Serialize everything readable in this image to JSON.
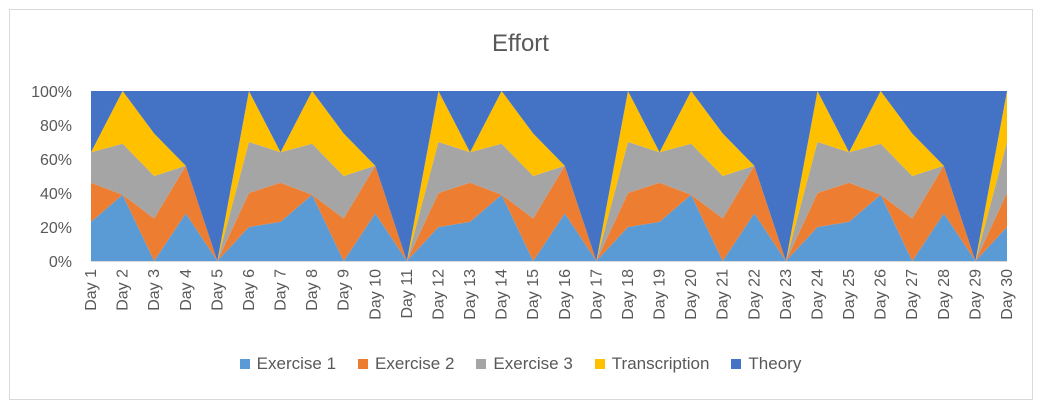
{
  "chart_data": {
    "type": "area",
    "stacked_percent": true,
    "title": "Effort",
    "categories": [
      "Day 1",
      "Day 2",
      "Day 3",
      "Day 4",
      "Day 5",
      "Day 6",
      "Day 7",
      "Day 8",
      "Day 9",
      "Day 10",
      "Day 11",
      "Day 12",
      "Day 13",
      "Day 14",
      "Day 15",
      "Day 16",
      "Day 17",
      "Day 18",
      "Day 19",
      "Day 20",
      "Day 21",
      "Day 22",
      "Day 23",
      "Day 24",
      "Day 25",
      "Day 26",
      "Day 27",
      "Day 28",
      "Day 29",
      "Day 30"
    ],
    "y_ticks": [
      "0%",
      "20%",
      "40%",
      "60%",
      "80%",
      "100%"
    ],
    "ylim": [
      0,
      100
    ],
    "legend_position": "bottom",
    "grid": false,
    "series": [
      {
        "name": "Exercise 1",
        "color": "#5B9BD5",
        "values": [
          23,
          39,
          0,
          28,
          0,
          20,
          23,
          39,
          0,
          28,
          0,
          20,
          23,
          39,
          0,
          28,
          0,
          20,
          23,
          39,
          0,
          28,
          0,
          20,
          23,
          39,
          0,
          28,
          0,
          20
        ]
      },
      {
        "name": "Exercise 2",
        "color": "#ED7D31",
        "values": [
          23,
          0,
          25,
          28,
          0,
          20,
          23,
          0,
          25,
          28,
          0,
          20,
          23,
          0,
          25,
          28,
          0,
          20,
          23,
          0,
          25,
          28,
          0,
          20,
          23,
          0,
          25,
          28,
          0,
          20
        ]
      },
      {
        "name": "Exercise 3",
        "color": "#A5A5A5",
        "values": [
          18,
          30,
          25,
          0,
          0,
          30,
          18,
          30,
          25,
          0,
          0,
          30,
          18,
          30,
          25,
          0,
          0,
          30,
          18,
          30,
          25,
          0,
          0,
          30,
          18,
          30,
          25,
          0,
          0,
          30
        ]
      },
      {
        "name": "Transcription",
        "color": "#FFC000",
        "values": [
          0,
          31,
          25,
          0,
          0,
          30,
          0,
          31,
          25,
          0,
          0,
          30,
          0,
          31,
          25,
          0,
          0,
          30,
          0,
          31,
          25,
          0,
          0,
          30,
          0,
          31,
          25,
          0,
          0,
          30
        ]
      },
      {
        "name": "Theory",
        "color": "#4472C4",
        "values": [
          36,
          0,
          25,
          44,
          100,
          0,
          36,
          0,
          25,
          44,
          100,
          0,
          36,
          0,
          25,
          44,
          100,
          0,
          36,
          0,
          25,
          44,
          100,
          0,
          36,
          0,
          25,
          44,
          100,
          0
        ]
      }
    ]
  }
}
